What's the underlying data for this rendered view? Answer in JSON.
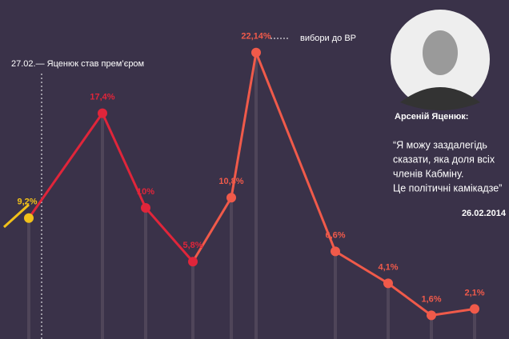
{
  "chart_data": {
    "type": "line",
    "categories": [
      null,
      null,
      null,
      null,
      null,
      null,
      null,
      null,
      null,
      null
    ],
    "series": [
      {
        "values": [
          9.2,
          17.4,
          10,
          5.8,
          10.8,
          22.14,
          6.6,
          4.1,
          1.6,
          2.1
        ],
        "value_labels": [
          "9,2%",
          "17,4%",
          "10%",
          "5,8%",
          "10,8%",
          "22,14%",
          "6,6%",
          "4,1%",
          "1,6%",
          "2,1%"
        ],
        "colors": [
          "#f2c11a",
          "#e0253a",
          "#e0253a",
          "#e0253a",
          "#f05a4a",
          "#f05a4a",
          "#f05a4a",
          "#f05a4a",
          "#f05a4a",
          "#f05a4a"
        ]
      }
    ],
    "annotations": [
      "27.02.— Яценюк став прем’єром",
      "вибори до ВР"
    ],
    "quote": {
      "author": "Арсеній Яценюк:",
      "lines": [
        "“Я можу заздалегідь",
        "сказати, яка доля всіх",
        "членів Кабміну.",
        "Це політичні камікадзе”"
      ],
      "date": "26.02.2014"
    }
  }
}
